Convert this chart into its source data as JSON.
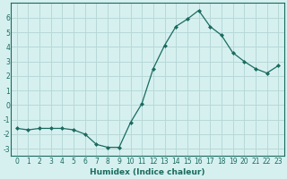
{
  "x": [
    0,
    1,
    2,
    3,
    4,
    5,
    6,
    7,
    8,
    9,
    10,
    11,
    12,
    13,
    14,
    15,
    16,
    17,
    18,
    19,
    20,
    21,
    22,
    23
  ],
  "y": [
    -1.6,
    -1.7,
    -1.6,
    -1.6,
    -1.6,
    -1.7,
    -2.0,
    -2.7,
    -2.9,
    -2.9,
    -1.2,
    0.1,
    2.5,
    4.1,
    5.4,
    5.9,
    6.5,
    5.4,
    4.8,
    3.6,
    3.0,
    2.5,
    2.2,
    2.7
  ],
  "line_color": "#1a6b5e",
  "marker": "D",
  "marker_size": 2.0,
  "bg_color": "#d6f0f0",
  "grid_color": "#b8d8d8",
  "xlabel": "Humidex (Indice chaleur)",
  "xlim": [
    -0.5,
    23.5
  ],
  "ylim": [
    -3.5,
    7.0
  ],
  "xticks": [
    0,
    1,
    2,
    3,
    4,
    5,
    6,
    7,
    8,
    9,
    10,
    11,
    12,
    13,
    14,
    15,
    16,
    17,
    18,
    19,
    20,
    21,
    22,
    23
  ],
  "yticks": [
    -3,
    -2,
    -1,
    0,
    1,
    2,
    3,
    4,
    5,
    6
  ],
  "xlabel_fontsize": 6.5,
  "tick_fontsize": 5.5
}
